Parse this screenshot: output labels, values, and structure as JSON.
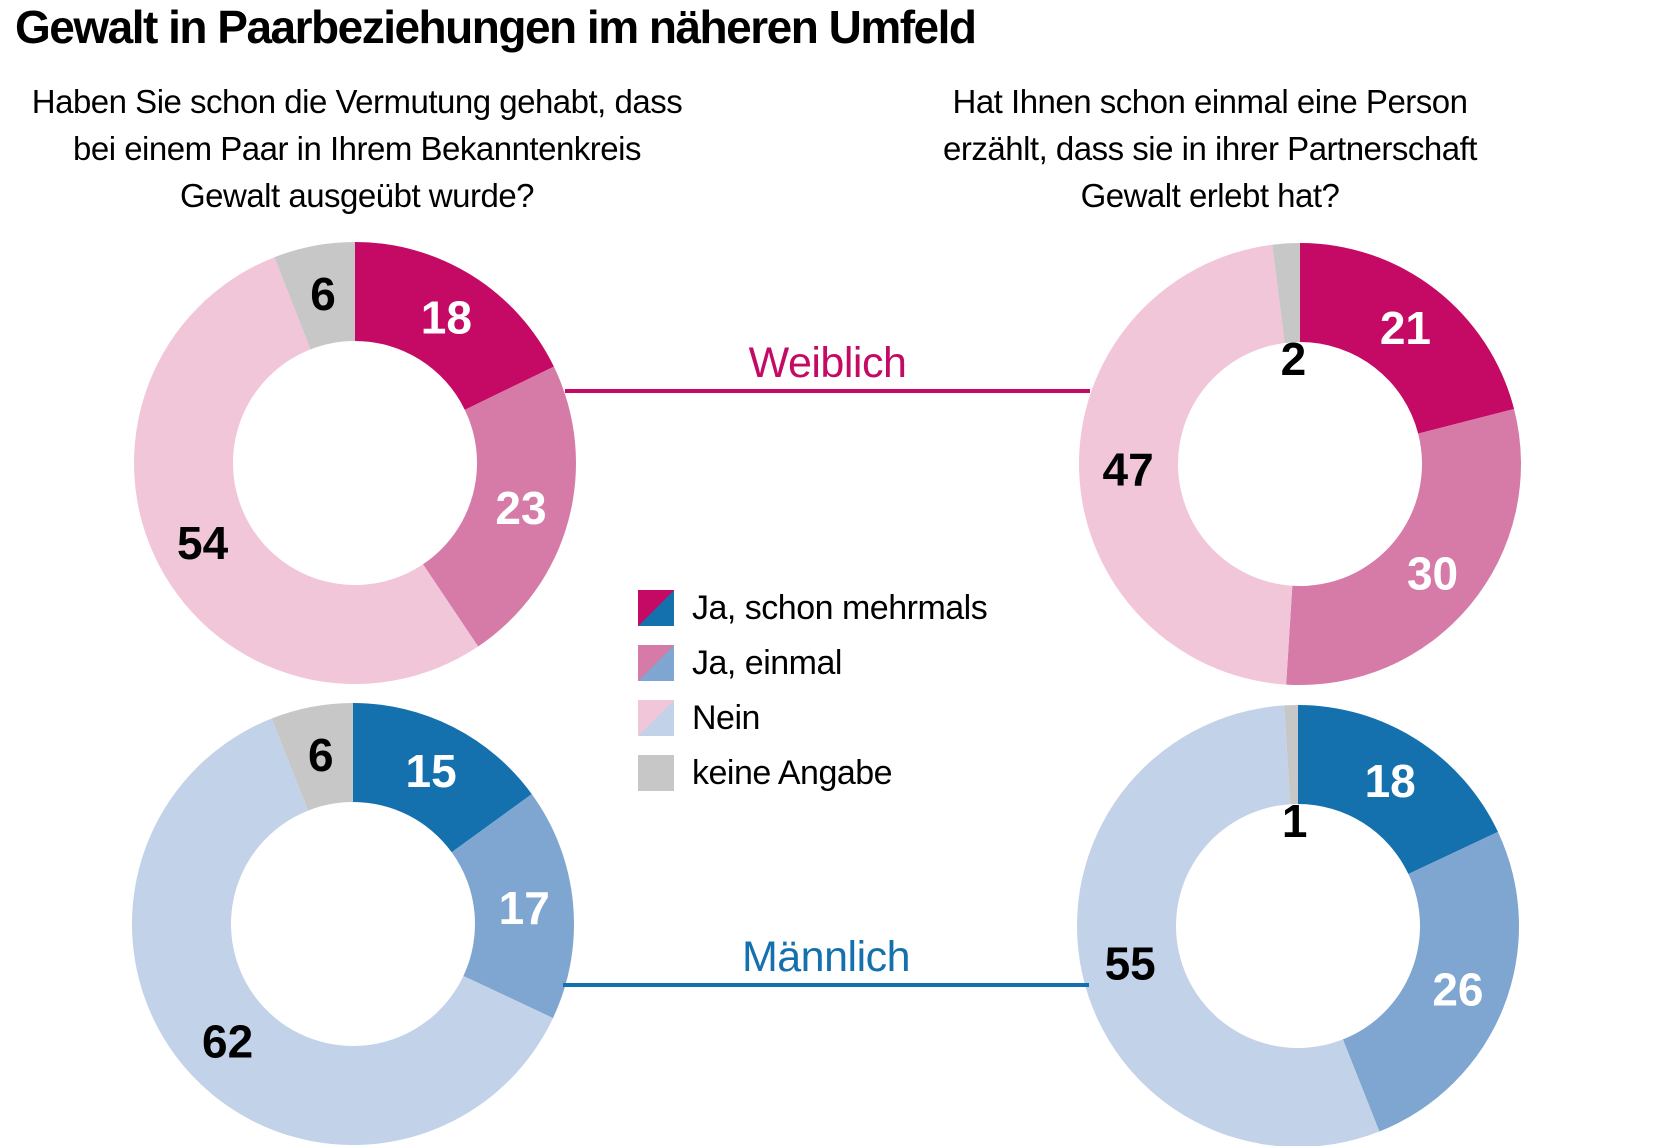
{
  "title": "Gewalt in Paarbeziehungen im näheren Umfeld",
  "questions": {
    "left": "Haben Sie schon die Vermutung gehabt, dass\nbei einem Paar in Ihrem Bekanntenkreis\nGewalt ausgeübt wurde?",
    "right": "Hat Ihnen schon einmal eine Person\nerzählt, dass sie in ihrer Partnerschaft\nGewalt erlebt hat?"
  },
  "group_labels": {
    "female": {
      "label": "Weiblich",
      "color": "#c40a64"
    },
    "male": {
      "label": "Männlich",
      "color": "#1471ad"
    }
  },
  "legend": {
    "items": [
      {
        "label": "Ja, schon mehrmals",
        "female_color": "#c40a64",
        "male_color": "#1471ad"
      },
      {
        "label": "Ja, einmal",
        "female_color": "#d67ba8",
        "male_color": "#7fa6d0"
      },
      {
        "label": "Nein",
        "female_color": "#f1c6d9",
        "male_color": "#c2d2e9"
      },
      {
        "label": "keine Angabe",
        "female_color": "#c7c7c7",
        "male_color": "#c7c7c7"
      }
    ]
  },
  "chart_data": {
    "type": "pie",
    "subtype": "donut-grid",
    "units": "percent",
    "categories": [
      "Ja, schon mehrmals",
      "Ja, einmal",
      "Nein",
      "keine Angabe"
    ],
    "label_text_colors": [
      "#ffffff",
      "#ffffff",
      "#000000",
      "#000000"
    ],
    "palettes": {
      "Weiblich": [
        "#c40a64",
        "#d67ba8",
        "#f1c6d9",
        "#c7c7c7"
      ],
      "Männlich": [
        "#1471ad",
        "#7fa6d0",
        "#c2d2e9",
        "#c7c7c7"
      ]
    },
    "donuts": [
      {
        "id": "female-left",
        "gender": "Weiblich",
        "question_side": "left",
        "values": [
          18,
          23,
          54,
          6
        ]
      },
      {
        "id": "female-right",
        "gender": "Weiblich",
        "question_side": "right",
        "values": [
          21,
          30,
          47,
          2
        ]
      },
      {
        "id": "male-left",
        "gender": "Männlich",
        "question_side": "left",
        "values": [
          15,
          17,
          62,
          6
        ]
      },
      {
        "id": "male-right",
        "gender": "Männlich",
        "question_side": "right",
        "values": [
          18,
          26,
          55,
          1
        ]
      }
    ]
  }
}
